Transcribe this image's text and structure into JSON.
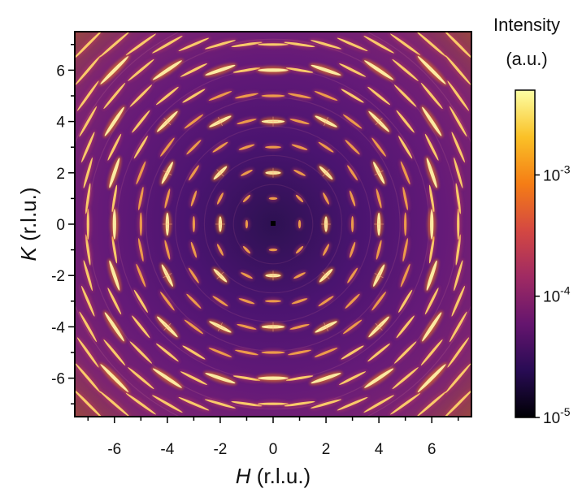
{
  "chart_data": {
    "type": "heatmap",
    "xlabel": {
      "variable": "H",
      "unit": " (r.l.u.)"
    },
    "ylabel": {
      "variable": "K",
      "unit": " (r.l.u.)"
    },
    "xlim": [
      -7.5,
      7.5
    ],
    "ylim": [
      -7.5,
      7.5
    ],
    "x_ticks": [
      -6,
      -4,
      -2,
      0,
      2,
      4,
      6
    ],
    "y_ticks": [
      -6,
      -4,
      -2,
      0,
      2,
      4,
      6
    ],
    "x_tick_labels": [
      "-6",
      "-4",
      "-2",
      "0",
      "2",
      "4",
      "6"
    ],
    "y_tick_labels": [
      "-6",
      "-4",
      "-2",
      "0",
      "2",
      "4",
      "6"
    ],
    "minor_tick_step": 1,
    "grid": false,
    "peak_lattice": {
      "spacing": 1,
      "range": [
        -7,
        7
      ],
      "strong_even_spots": true
    },
    "colorbar": {
      "title": [
        "Intensity",
        "(a.u.)"
      ],
      "scale": "log",
      "range": [
        1e-05,
        0.005
      ],
      "ticks": [
        {
          "value": 1e-05,
          "base": "10",
          "exponent": "-5"
        },
        {
          "value": 0.0001,
          "base": "10",
          "exponent": "-4"
        },
        {
          "value": 0.001,
          "base": "10",
          "exponent": "-3"
        }
      ],
      "colormap": "inferno",
      "colormap_stops": [
        "#000004",
        "#280b54",
        "#65156e",
        "#9f2a63",
        "#d44842",
        "#f57d15",
        "#fac127",
        "#fcffa4"
      ]
    }
  }
}
